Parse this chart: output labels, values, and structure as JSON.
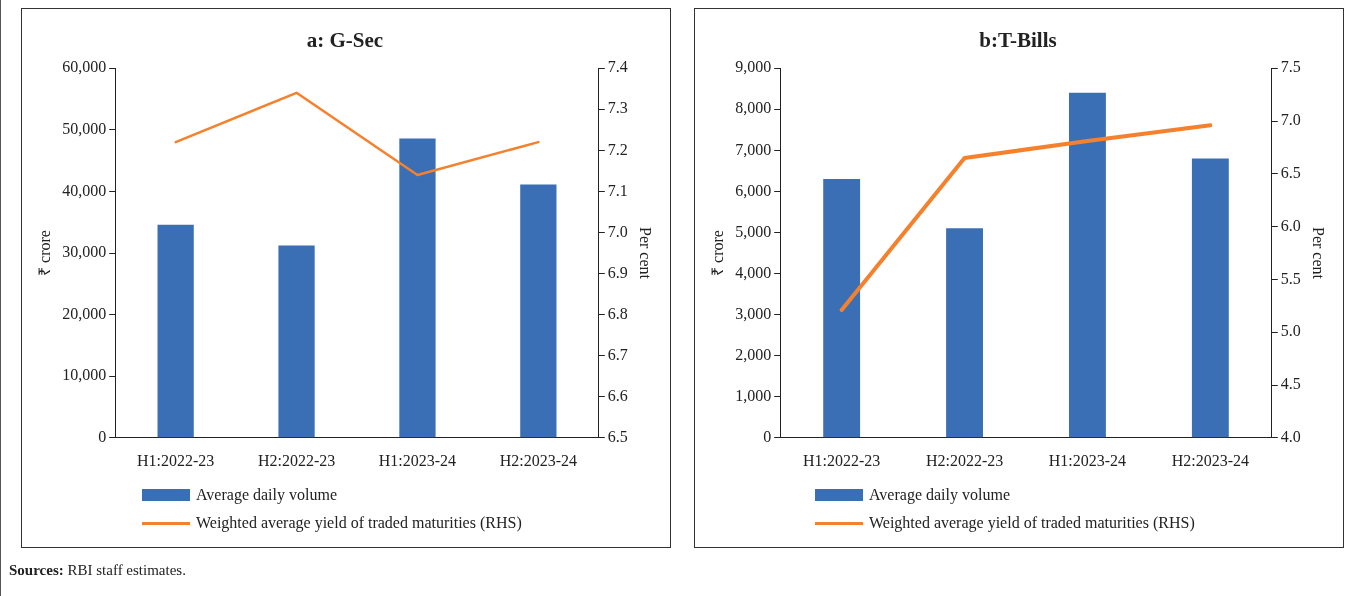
{
  "chart_data": [
    {
      "type": "bar",
      "title": "a: G-Sec",
      "ylabel": "₹ crore",
      "y2label": "Per cent",
      "categories": [
        "H1:2022-23",
        "H2:2022-23",
        "H1:2023-24",
        "H2:2023-24"
      ],
      "series": [
        {
          "name": "Average daily volume",
          "color": "#3a6fb6",
          "values": [
            34600,
            31200,
            48600,
            41100
          ]
        },
        {
          "name": "Weighted average yield of traded maturities (RHS)",
          "type": "line",
          "axis": "y2",
          "color": "#f5812c",
          "values": [
            7.22,
            7.34,
            7.14,
            7.22
          ]
        }
      ],
      "ylim": [
        0,
        60000
      ],
      "yticks": [
        {
          "value": 0,
          "label": "0"
        },
        {
          "value": 10000,
          "label": "10,000"
        },
        {
          "value": 20000,
          "label": "20,000"
        },
        {
          "value": 30000,
          "label": "30,000"
        },
        {
          "value": 40000,
          "label": "40,000"
        },
        {
          "value": 50000,
          "label": "50,000"
        },
        {
          "value": 60000,
          "label": "60,000"
        }
      ],
      "y2lim": [
        6.5,
        7.4
      ],
      "y2ticks": [
        {
          "value": 6.5,
          "label": "6.5"
        },
        {
          "value": 6.6,
          "label": "6.6"
        },
        {
          "value": 6.7,
          "label": "6.7"
        },
        {
          "value": 6.8,
          "label": "6.8"
        },
        {
          "value": 6.9,
          "label": "6.9"
        },
        {
          "value": 7.0,
          "label": "7.0"
        },
        {
          "value": 7.1,
          "label": "7.1"
        },
        {
          "value": 7.2,
          "label": "7.2"
        },
        {
          "value": 7.3,
          "label": "7.3"
        },
        {
          "value": 7.4,
          "label": "7.4"
        }
      ],
      "grid": false,
      "legend": "bottom",
      "annotations": [
        "Sources: RBI staff estimates."
      ]
    },
    {
      "type": "bar",
      "title": "b:T-Bills",
      "ylabel": "₹ crore",
      "y2label": "Per cent",
      "categories": [
        "H1:2022-23",
        "H2:2022-23",
        "H1:2023-24",
        "H2:2023-24"
      ],
      "series": [
        {
          "name": "Average daily volume",
          "color": "#3a6fb6",
          "values": [
            6300,
            5100,
            8400,
            6800
          ]
        },
        {
          "name": "Weighted average yield of traded maturities (RHS)",
          "type": "line",
          "axis": "y2",
          "color": "#f5812c",
          "values": [
            5.21,
            6.65,
            6.81,
            6.96
          ]
        }
      ],
      "ylim": [
        0,
        9000
      ],
      "yticks": [
        {
          "value": 0,
          "label": "0"
        },
        {
          "value": 1000,
          "label": "1,000"
        },
        {
          "value": 2000,
          "label": "2,000"
        },
        {
          "value": 3000,
          "label": "3,000"
        },
        {
          "value": 4000,
          "label": "4,000"
        },
        {
          "value": 5000,
          "label": "5,000"
        },
        {
          "value": 6000,
          "label": "6,000"
        },
        {
          "value": 7000,
          "label": "7,000"
        },
        {
          "value": 8000,
          "label": "8,000"
        },
        {
          "value": 9000,
          "label": "9,000"
        }
      ],
      "y2lim": [
        4.0,
        7.5
      ],
      "y2ticks": [
        {
          "value": 4.0,
          "label": "4.0"
        },
        {
          "value": 4.5,
          "label": "4.5"
        },
        {
          "value": 5.0,
          "label": "5.0"
        },
        {
          "value": 5.5,
          "label": "5.5"
        },
        {
          "value": 6.0,
          "label": "6.0"
        },
        {
          "value": 6.5,
          "label": "6.5"
        },
        {
          "value": 7.0,
          "label": "7.0"
        },
        {
          "value": 7.5,
          "label": "7.5"
        }
      ],
      "grid": false,
      "legend": "bottom"
    }
  ]
}
